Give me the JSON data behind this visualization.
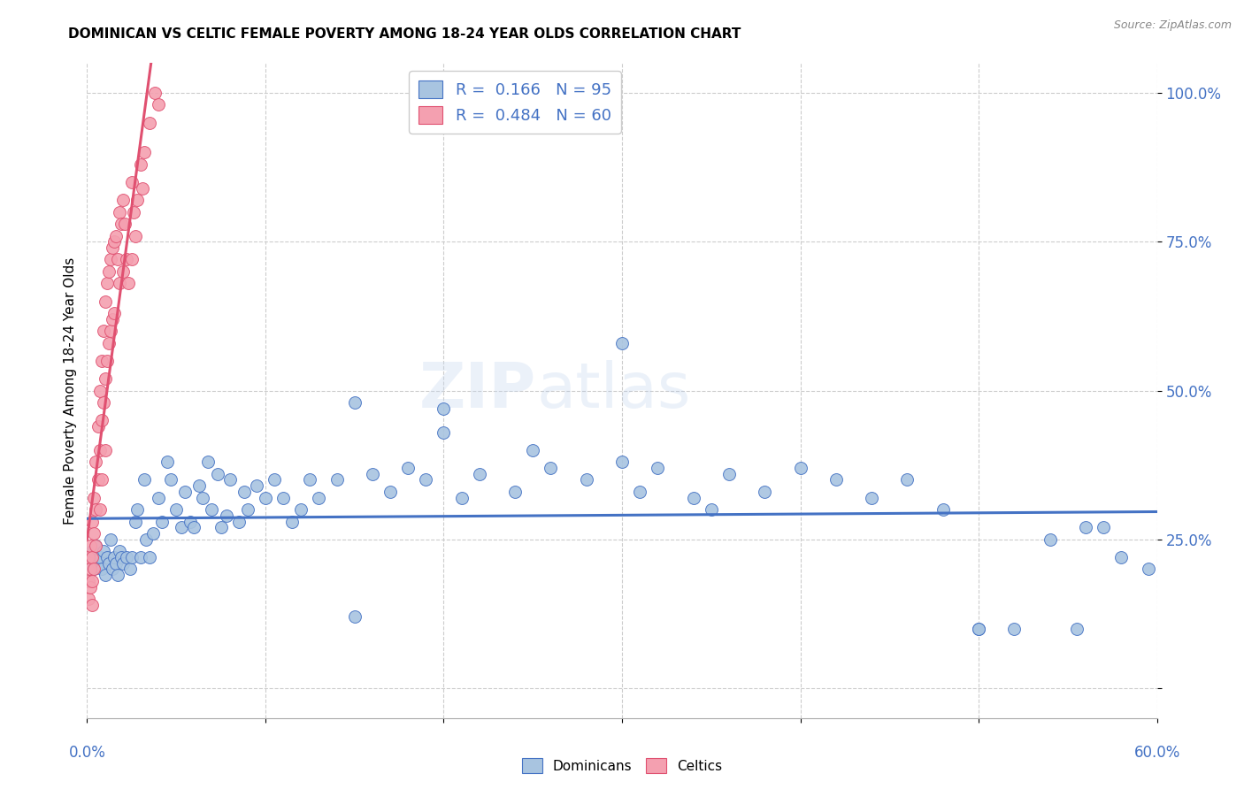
{
  "title": "DOMINICAN VS CELTIC FEMALE POVERTY AMONG 18-24 YEAR OLDS CORRELATION CHART",
  "source": "Source: ZipAtlas.com",
  "ylabel": "Female Poverty Among 18-24 Year Olds",
  "legend_label_blue": "Dominicans",
  "legend_label_pink": "Celtics",
  "blue_R": 0.166,
  "blue_N": 95,
  "pink_R": 0.484,
  "pink_N": 60,
  "blue_color": "#a8c4e0",
  "pink_color": "#f4a0b0",
  "blue_line_color": "#4472c4",
  "pink_line_color": "#e05070",
  "xmin": 0.0,
  "xmax": 0.6,
  "ymin": -0.05,
  "ymax": 1.05,
  "blue_scatter_x": [
    0.001,
    0.002,
    0.003,
    0.004,
    0.005,
    0.006,
    0.007,
    0.008,
    0.009,
    0.01,
    0.011,
    0.012,
    0.013,
    0.014,
    0.015,
    0.016,
    0.017,
    0.018,
    0.019,
    0.02,
    0.022,
    0.024,
    0.025,
    0.027,
    0.028,
    0.03,
    0.032,
    0.033,
    0.035,
    0.037,
    0.04,
    0.042,
    0.045,
    0.047,
    0.05,
    0.053,
    0.055,
    0.058,
    0.06,
    0.063,
    0.065,
    0.068,
    0.07,
    0.073,
    0.075,
    0.078,
    0.08,
    0.085,
    0.088,
    0.09,
    0.095,
    0.1,
    0.105,
    0.11,
    0.115,
    0.12,
    0.125,
    0.13,
    0.14,
    0.15,
    0.16,
    0.17,
    0.18,
    0.19,
    0.2,
    0.21,
    0.22,
    0.24,
    0.26,
    0.28,
    0.3,
    0.31,
    0.32,
    0.34,
    0.35,
    0.36,
    0.38,
    0.4,
    0.42,
    0.44,
    0.46,
    0.48,
    0.5,
    0.52,
    0.54,
    0.555,
    0.56,
    0.57,
    0.58,
    0.595,
    0.3,
    0.25,
    0.2,
    0.5,
    0.15
  ],
  "blue_scatter_y": [
    0.22,
    0.21,
    0.23,
    0.2,
    0.24,
    0.21,
    0.22,
    0.2,
    0.23,
    0.19,
    0.22,
    0.21,
    0.25,
    0.2,
    0.22,
    0.21,
    0.19,
    0.23,
    0.22,
    0.21,
    0.22,
    0.2,
    0.22,
    0.28,
    0.3,
    0.22,
    0.35,
    0.25,
    0.22,
    0.26,
    0.32,
    0.28,
    0.38,
    0.35,
    0.3,
    0.27,
    0.33,
    0.28,
    0.27,
    0.34,
    0.32,
    0.38,
    0.3,
    0.36,
    0.27,
    0.29,
    0.35,
    0.28,
    0.33,
    0.3,
    0.34,
    0.32,
    0.35,
    0.32,
    0.28,
    0.3,
    0.35,
    0.32,
    0.35,
    0.48,
    0.36,
    0.33,
    0.37,
    0.35,
    0.43,
    0.32,
    0.36,
    0.33,
    0.37,
    0.35,
    0.58,
    0.33,
    0.37,
    0.32,
    0.3,
    0.36,
    0.33,
    0.37,
    0.35,
    0.32,
    0.35,
    0.3,
    0.1,
    0.1,
    0.25,
    0.1,
    0.27,
    0.27,
    0.22,
    0.2,
    0.38,
    0.4,
    0.47,
    0.1,
    0.12
  ],
  "pink_scatter_x": [
    0.001,
    0.001,
    0.001,
    0.002,
    0.002,
    0.002,
    0.003,
    0.003,
    0.003,
    0.003,
    0.004,
    0.004,
    0.004,
    0.005,
    0.005,
    0.005,
    0.006,
    0.006,
    0.007,
    0.007,
    0.007,
    0.008,
    0.008,
    0.008,
    0.009,
    0.009,
    0.01,
    0.01,
    0.01,
    0.011,
    0.011,
    0.012,
    0.012,
    0.013,
    0.013,
    0.014,
    0.014,
    0.015,
    0.015,
    0.016,
    0.017,
    0.018,
    0.018,
    0.019,
    0.02,
    0.02,
    0.021,
    0.022,
    0.023,
    0.025,
    0.025,
    0.026,
    0.027,
    0.028,
    0.03,
    0.031,
    0.032,
    0.035,
    0.038,
    0.04
  ],
  "pink_scatter_y": [
    0.22,
    0.18,
    0.15,
    0.24,
    0.2,
    0.17,
    0.28,
    0.22,
    0.18,
    0.14,
    0.32,
    0.26,
    0.2,
    0.38,
    0.3,
    0.24,
    0.44,
    0.35,
    0.5,
    0.4,
    0.3,
    0.55,
    0.45,
    0.35,
    0.6,
    0.48,
    0.65,
    0.52,
    0.4,
    0.68,
    0.55,
    0.7,
    0.58,
    0.72,
    0.6,
    0.74,
    0.62,
    0.75,
    0.63,
    0.76,
    0.72,
    0.8,
    0.68,
    0.78,
    0.82,
    0.7,
    0.78,
    0.72,
    0.68,
    0.85,
    0.72,
    0.8,
    0.76,
    0.82,
    0.88,
    0.84,
    0.9,
    0.95,
    1.0,
    0.98
  ]
}
